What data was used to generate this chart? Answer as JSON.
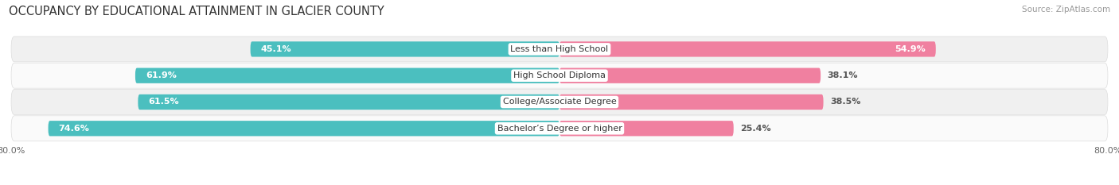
{
  "title": "OCCUPANCY BY EDUCATIONAL ATTAINMENT IN GLACIER COUNTY",
  "source": "Source: ZipAtlas.com",
  "categories": [
    "Less than High School",
    "High School Diploma",
    "College/Associate Degree",
    "Bachelor’s Degree or higher"
  ],
  "owner_pct": [
    45.1,
    61.9,
    61.5,
    74.6
  ],
  "renter_pct": [
    54.9,
    38.1,
    38.5,
    25.4
  ],
  "owner_color": "#4BBFBF",
  "renter_color": "#F080A0",
  "bar_height": 0.58,
  "row_bg_color_odd": "#F0F0F0",
  "row_bg_color_even": "#FAFAFA",
  "xlim": 80.0,
  "title_fontsize": 10.5,
  "label_fontsize": 8,
  "value_fontsize": 8,
  "tick_fontsize": 8,
  "source_fontsize": 7.5
}
